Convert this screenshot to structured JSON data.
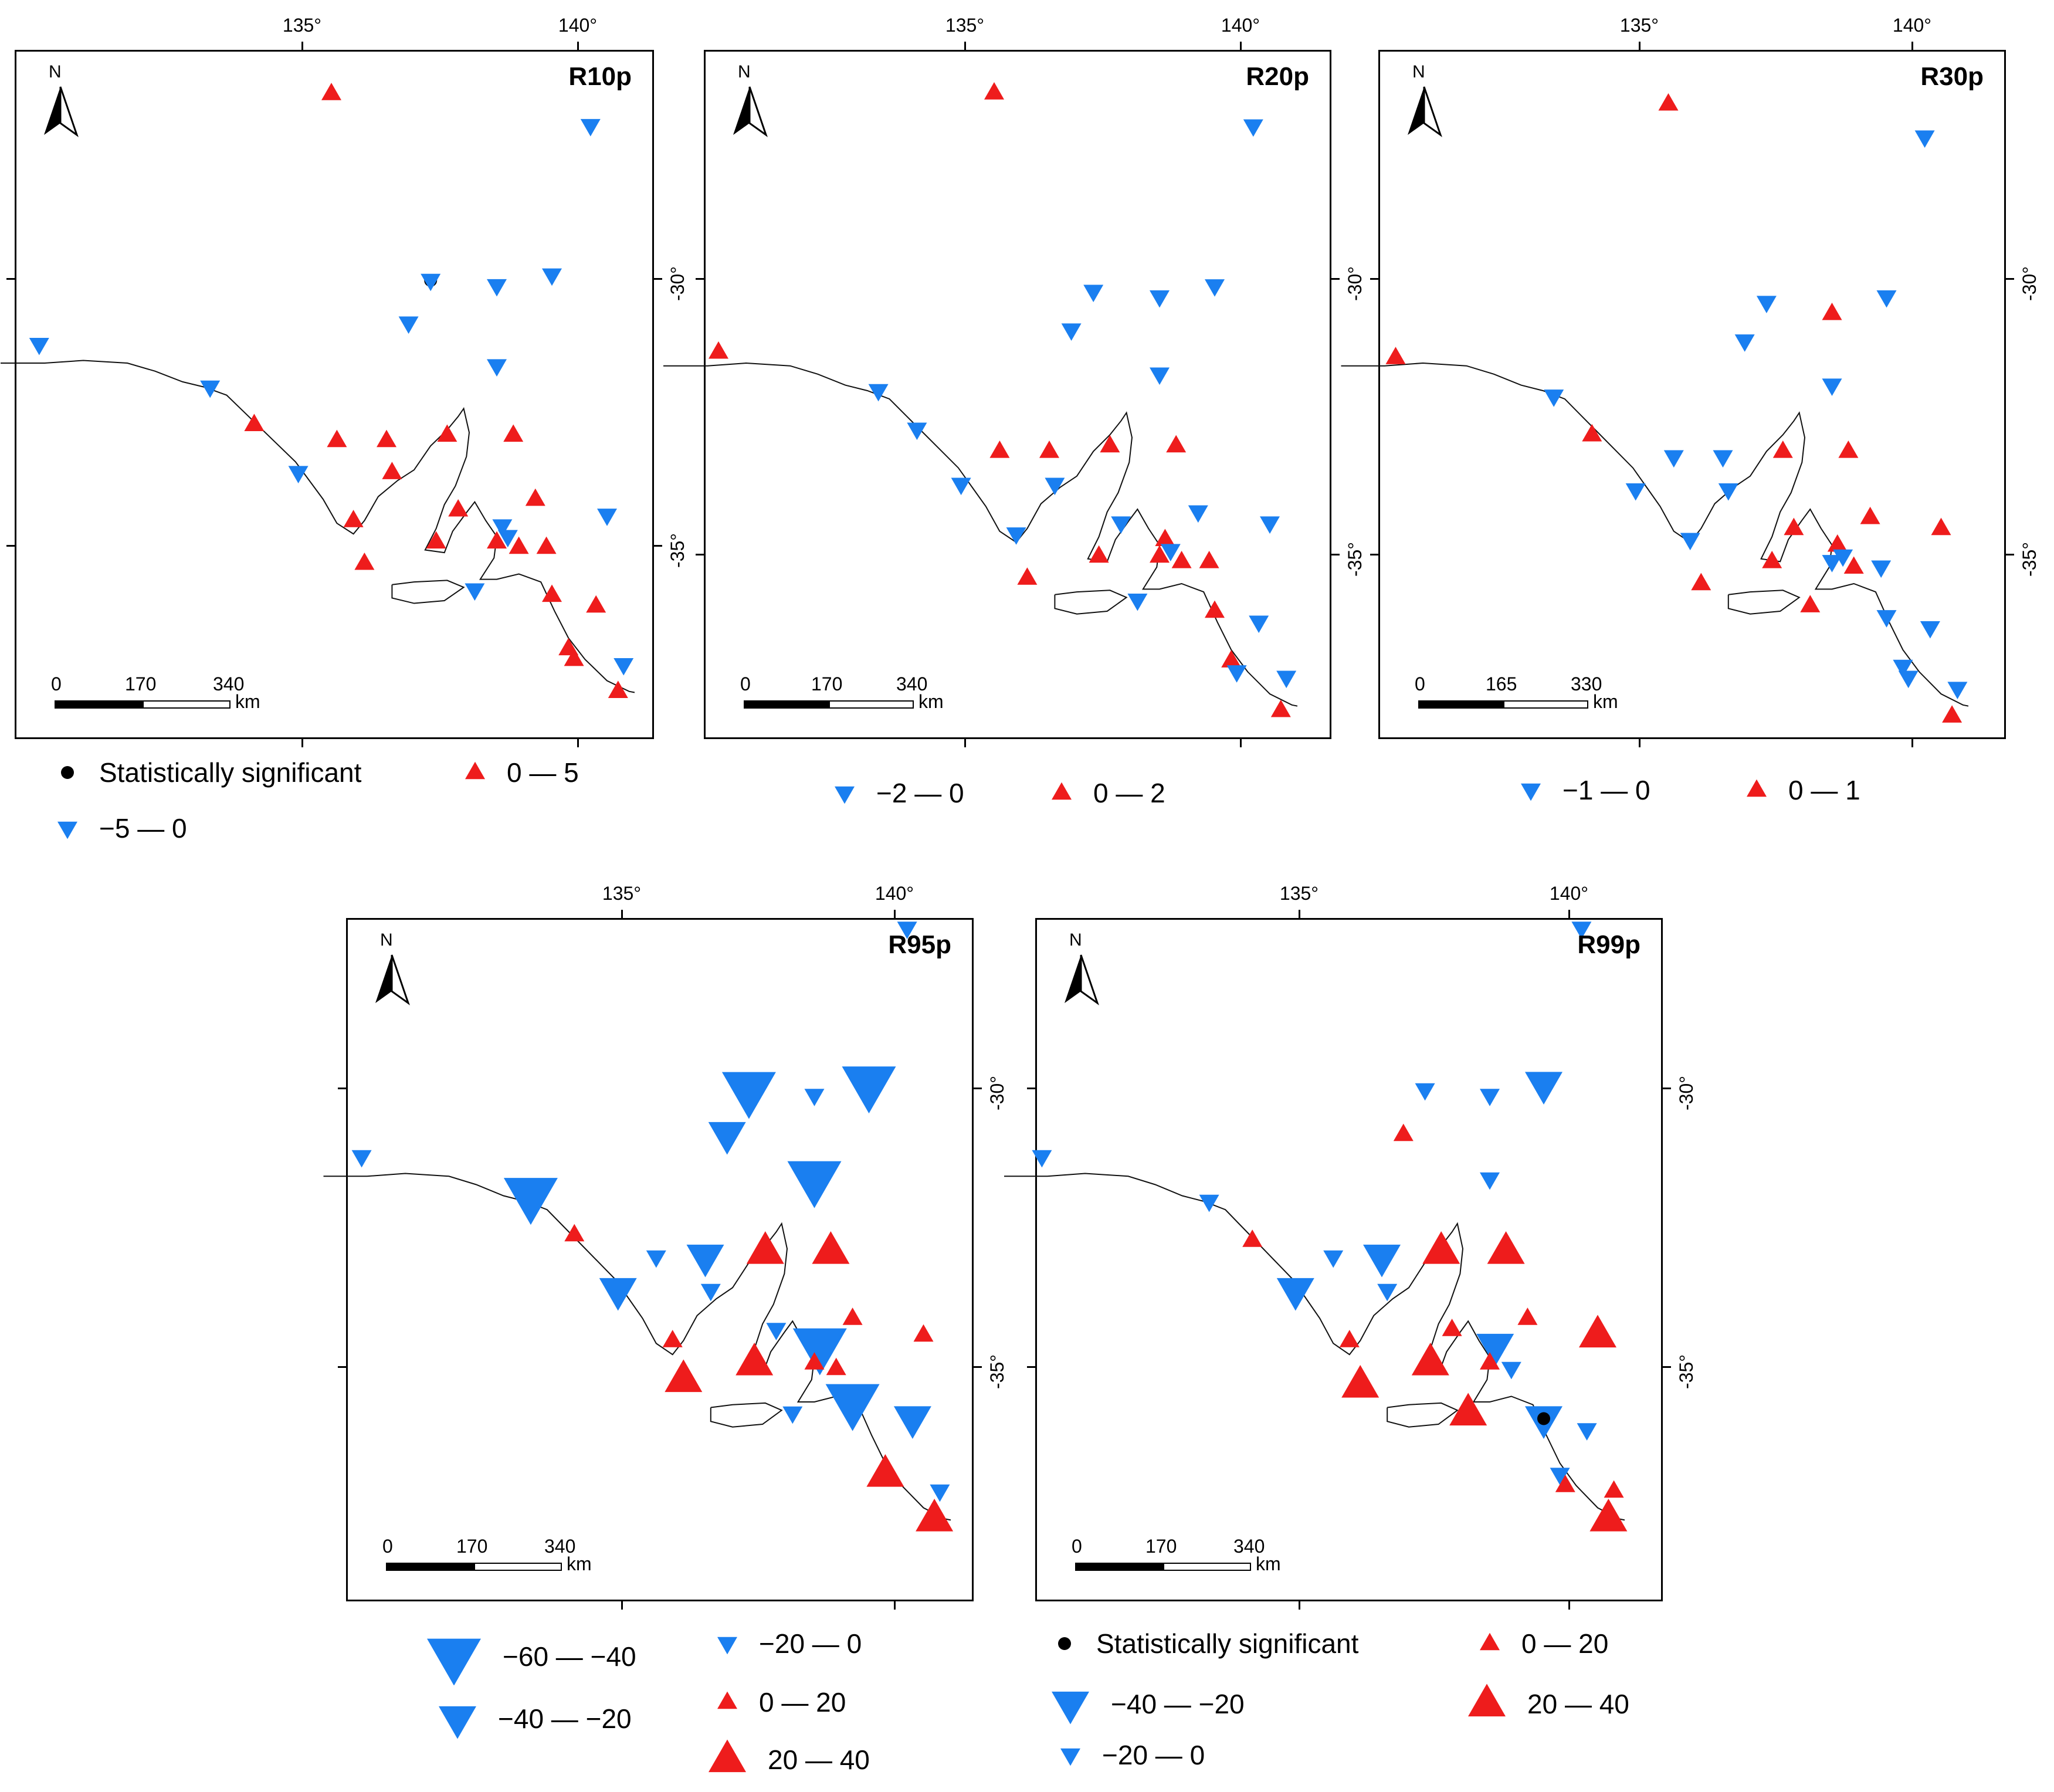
{
  "colors": {
    "positive": "#ee1c1c",
    "negative": "#1a7ff0",
    "significant": "#000000"
  },
  "common": {
    "north_label": "N",
    "lon_labels": [
      "135°",
      "140°"
    ],
    "lat_labels": [
      "-30°",
      "-35°"
    ],
    "km_label": "km"
  },
  "panels": [
    {
      "title": "R10p",
      "scale": [
        "0",
        "170",
        "340"
      ],
      "stations": [
        {
          "lon": 135.5,
          "lat": -26.5,
          "s": "pos1"
        },
        {
          "lon": 140.2,
          "lat": -27.1,
          "s": "neg1"
        },
        {
          "lon": 137.3,
          "lat": -30.0,
          "s": "sig"
        },
        {
          "lon": 137.3,
          "lat": -30.0,
          "s": "neg1"
        },
        {
          "lon": 138.5,
          "lat": -30.1,
          "s": "neg1"
        },
        {
          "lon": 139.5,
          "lat": -29.9,
          "s": "neg1"
        },
        {
          "lon": 136.9,
          "lat": -30.8,
          "s": "neg1"
        },
        {
          "lon": 130.2,
          "lat": -31.2,
          "s": "neg1"
        },
        {
          "lon": 133.3,
          "lat": -32.0,
          "s": "neg1"
        },
        {
          "lon": 138.5,
          "lat": -31.6,
          "s": "neg1"
        },
        {
          "lon": 134.1,
          "lat": -32.7,
          "s": "pos1"
        },
        {
          "lon": 135.6,
          "lat": -33.0,
          "s": "pos1"
        },
        {
          "lon": 136.5,
          "lat": -33.0,
          "s": "pos1"
        },
        {
          "lon": 137.6,
          "lat": -32.9,
          "s": "pos1"
        },
        {
          "lon": 138.8,
          "lat": -32.9,
          "s": "pos1"
        },
        {
          "lon": 134.9,
          "lat": -33.6,
          "s": "neg1"
        },
        {
          "lon": 136.6,
          "lat": -33.6,
          "s": "pos1"
        },
        {
          "lon": 139.2,
          "lat": -34.1,
          "s": "pos1"
        },
        {
          "lon": 137.8,
          "lat": -34.3,
          "s": "pos1"
        },
        {
          "lon": 135.9,
          "lat": -34.5,
          "s": "pos1"
        },
        {
          "lon": 138.6,
          "lat": -34.6,
          "s": "neg1"
        },
        {
          "lon": 140.5,
          "lat": -34.4,
          "s": "neg1"
        },
        {
          "lon": 137.4,
          "lat": -34.9,
          "s": "pos1"
        },
        {
          "lon": 138.5,
          "lat": -34.9,
          "s": "pos1"
        },
        {
          "lon": 138.7,
          "lat": -34.8,
          "s": "neg1"
        },
        {
          "lon": 138.9,
          "lat": -35.0,
          "s": "pos1"
        },
        {
          "lon": 139.4,
          "lat": -35.0,
          "s": "pos1"
        },
        {
          "lon": 136.1,
          "lat": -35.3,
          "s": "pos1"
        },
        {
          "lon": 138.1,
          "lat": -35.8,
          "s": "neg1"
        },
        {
          "lon": 139.5,
          "lat": -35.9,
          "s": "pos1"
        },
        {
          "lon": 140.3,
          "lat": -36.1,
          "s": "pos1"
        },
        {
          "lon": 139.8,
          "lat": -36.9,
          "s": "pos1"
        },
        {
          "lon": 139.9,
          "lat": -37.1,
          "s": "pos1"
        },
        {
          "lon": 140.8,
          "lat": -37.2,
          "s": "neg1"
        },
        {
          "lon": 140.7,
          "lat": -37.7,
          "s": "pos1"
        }
      ]
    },
    {
      "title": "R20p",
      "scale": [
        "0",
        "170",
        "340"
      ],
      "stations": [
        {
          "lon": 135.5,
          "lat": -26.6,
          "s": "pos1"
        },
        {
          "lon": 140.2,
          "lat": -27.2,
          "s": "neg1"
        },
        {
          "lon": 137.3,
          "lat": -30.2,
          "s": "neg1"
        },
        {
          "lon": 138.5,
          "lat": -30.3,
          "s": "neg1"
        },
        {
          "lon": 139.5,
          "lat": -30.1,
          "s": "neg1"
        },
        {
          "lon": 136.9,
          "lat": -30.9,
          "s": "neg1"
        },
        {
          "lon": 130.5,
          "lat": -31.3,
          "s": "pos1"
        },
        {
          "lon": 138.5,
          "lat": -31.7,
          "s": "neg1"
        },
        {
          "lon": 133.4,
          "lat": -32.0,
          "s": "neg1"
        },
        {
          "lon": 134.1,
          "lat": -32.7,
          "s": "neg1"
        },
        {
          "lon": 135.6,
          "lat": -33.1,
          "s": "pos1"
        },
        {
          "lon": 136.5,
          "lat": -33.1,
          "s": "pos1"
        },
        {
          "lon": 137.6,
          "lat": -33.0,
          "s": "pos1"
        },
        {
          "lon": 138.8,
          "lat": -33.0,
          "s": "pos1"
        },
        {
          "lon": 134.9,
          "lat": -33.7,
          "s": "neg1"
        },
        {
          "lon": 136.6,
          "lat": -33.7,
          "s": "neg1"
        },
        {
          "lon": 139.2,
          "lat": -34.2,
          "s": "neg1"
        },
        {
          "lon": 137.8,
          "lat": -34.4,
          "s": "neg1"
        },
        {
          "lon": 135.9,
          "lat": -34.6,
          "s": "neg1"
        },
        {
          "lon": 138.6,
          "lat": -34.7,
          "s": "pos1"
        },
        {
          "lon": 140.5,
          "lat": -34.4,
          "s": "neg1"
        },
        {
          "lon": 137.4,
          "lat": -35.0,
          "s": "pos1"
        },
        {
          "lon": 138.5,
          "lat": -35.0,
          "s": "pos1"
        },
        {
          "lon": 138.7,
          "lat": -34.9,
          "s": "neg1"
        },
        {
          "lon": 138.9,
          "lat": -35.1,
          "s": "pos1"
        },
        {
          "lon": 139.4,
          "lat": -35.1,
          "s": "pos1"
        },
        {
          "lon": 136.1,
          "lat": -35.4,
          "s": "pos1"
        },
        {
          "lon": 138.1,
          "lat": -35.8,
          "s": "neg1"
        },
        {
          "lon": 139.5,
          "lat": -36.0,
          "s": "pos1"
        },
        {
          "lon": 140.3,
          "lat": -36.2,
          "s": "neg1"
        },
        {
          "lon": 139.8,
          "lat": -36.9,
          "s": "pos1"
        },
        {
          "lon": 139.9,
          "lat": -37.1,
          "s": "neg1"
        },
        {
          "lon": 140.8,
          "lat": -37.2,
          "s": "neg1"
        },
        {
          "lon": 140.7,
          "lat": -37.8,
          "s": "pos1"
        }
      ]
    },
    {
      "title": "R30p",
      "scale": [
        "0",
        "165",
        "330"
      ],
      "stations": [
        {
          "lon": 135.5,
          "lat": -26.8,
          "s": "pos1"
        },
        {
          "lon": 140.2,
          "lat": -27.4,
          "s": "neg1"
        },
        {
          "lon": 137.3,
          "lat": -30.4,
          "s": "neg1"
        },
        {
          "lon": 138.5,
          "lat": -30.6,
          "s": "pos1"
        },
        {
          "lon": 139.5,
          "lat": -30.3,
          "s": "neg1"
        },
        {
          "lon": 136.9,
          "lat": -31.1,
          "s": "neg1"
        },
        {
          "lon": 130.5,
          "lat": -31.4,
          "s": "pos1"
        },
        {
          "lon": 138.5,
          "lat": -31.9,
          "s": "neg1"
        },
        {
          "lon": 133.4,
          "lat": -32.1,
          "s": "neg1"
        },
        {
          "lon": 134.1,
          "lat": -32.8,
          "s": "pos1"
        },
        {
          "lon": 135.6,
          "lat": -33.2,
          "s": "neg1"
        },
        {
          "lon": 136.5,
          "lat": -33.2,
          "s": "neg1"
        },
        {
          "lon": 137.6,
          "lat": -33.1,
          "s": "pos1"
        },
        {
          "lon": 138.8,
          "lat": -33.1,
          "s": "pos1"
        },
        {
          "lon": 134.9,
          "lat": -33.8,
          "s": "neg1"
        },
        {
          "lon": 136.6,
          "lat": -33.8,
          "s": "neg1"
        },
        {
          "lon": 139.2,
          "lat": -34.3,
          "s": "pos1"
        },
        {
          "lon": 137.8,
          "lat": -34.5,
          "s": "pos1"
        },
        {
          "lon": 135.9,
          "lat": -34.7,
          "s": "neg1"
        },
        {
          "lon": 138.6,
          "lat": -34.8,
          "s": "pos1"
        },
        {
          "lon": 140.5,
          "lat": -34.5,
          "s": "pos1"
        },
        {
          "lon": 137.4,
          "lat": -35.1,
          "s": "pos1"
        },
        {
          "lon": 138.5,
          "lat": -35.1,
          "s": "neg1"
        },
        {
          "lon": 138.7,
          "lat": -35.0,
          "s": "neg1"
        },
        {
          "lon": 138.9,
          "lat": -35.2,
          "s": "pos1"
        },
        {
          "lon": 139.4,
          "lat": -35.2,
          "s": "neg1"
        },
        {
          "lon": 136.1,
          "lat": -35.5,
          "s": "pos1"
        },
        {
          "lon": 138.1,
          "lat": -35.9,
          "s": "pos1"
        },
        {
          "lon": 139.5,
          "lat": -36.1,
          "s": "neg1"
        },
        {
          "lon": 140.3,
          "lat": -36.3,
          "s": "neg1"
        },
        {
          "lon": 139.8,
          "lat": -37.0,
          "s": "neg1"
        },
        {
          "lon": 139.9,
          "lat": -37.2,
          "s": "neg1"
        },
        {
          "lon": 140.8,
          "lat": -37.4,
          "s": "neg1"
        },
        {
          "lon": 140.7,
          "lat": -37.9,
          "s": "pos1"
        }
      ]
    },
    {
      "title": "R95p",
      "scale": [
        "0",
        "170",
        "340"
      ],
      "stations": [
        {
          "lon": 135.5,
          "lat": -26.5,
          "s": "pos1"
        },
        {
          "lon": 140.2,
          "lat": -27.1,
          "s": "neg1"
        },
        {
          "lon": 137.3,
          "lat": -30.0,
          "s": "neg3"
        },
        {
          "lon": 139.5,
          "lat": -29.9,
          "s": "neg3"
        },
        {
          "lon": 138.5,
          "lat": -30.1,
          "s": "neg1"
        },
        {
          "lon": 136.9,
          "lat": -30.8,
          "s": "neg2"
        },
        {
          "lon": 130.2,
          "lat": -31.2,
          "s": "neg1"
        },
        {
          "lon": 133.3,
          "lat": -31.9,
          "s": "neg3"
        },
        {
          "lon": 138.5,
          "lat": -31.6,
          "s": "neg3"
        },
        {
          "lon": 134.1,
          "lat": -32.6,
          "s": "pos1"
        },
        {
          "lon": 135.6,
          "lat": -33.0,
          "s": "neg1"
        },
        {
          "lon": 136.5,
          "lat": -33.0,
          "s": "neg2"
        },
        {
          "lon": 137.6,
          "lat": -32.9,
          "s": "pos2"
        },
        {
          "lon": 138.8,
          "lat": -32.9,
          "s": "pos2"
        },
        {
          "lon": 134.9,
          "lat": -33.6,
          "s": "neg2"
        },
        {
          "lon": 136.6,
          "lat": -33.6,
          "s": "neg1"
        },
        {
          "lon": 139.2,
          "lat": -34.1,
          "s": "pos1"
        },
        {
          "lon": 137.8,
          "lat": -34.3,
          "s": "neg1"
        },
        {
          "lon": 135.9,
          "lat": -34.5,
          "s": "pos1"
        },
        {
          "lon": 138.6,
          "lat": -34.6,
          "s": "neg3"
        },
        {
          "lon": 140.5,
          "lat": -34.4,
          "s": "pos1"
        },
        {
          "lon": 137.4,
          "lat": -34.9,
          "s": "pos2"
        },
        {
          "lon": 138.5,
          "lat": -34.9,
          "s": "pos1"
        },
        {
          "lon": 138.9,
          "lat": -35.0,
          "s": "pos1"
        },
        {
          "lon": 136.1,
          "lat": -35.2,
          "s": "pos2"
        },
        {
          "lon": 139.2,
          "lat": -35.6,
          "s": "neg3"
        },
        {
          "lon": 138.1,
          "lat": -35.8,
          "s": "neg1"
        },
        {
          "lon": 140.3,
          "lat": -35.9,
          "s": "neg2"
        },
        {
          "lon": 139.8,
          "lat": -36.9,
          "s": "pos2"
        },
        {
          "lon": 140.8,
          "lat": -37.2,
          "s": "neg1"
        },
        {
          "lon": 140.7,
          "lat": -37.7,
          "s": "pos2"
        }
      ]
    },
    {
      "title": "R99p",
      "scale": [
        "0",
        "170",
        "340"
      ],
      "stations": [
        {
          "lon": 135.5,
          "lat": -26.5,
          "s": "pos1"
        },
        {
          "lon": 140.2,
          "lat": -27.1,
          "s": "neg1"
        },
        {
          "lon": 137.3,
          "lat": -30.0,
          "s": "neg1"
        },
        {
          "lon": 138.5,
          "lat": -30.1,
          "s": "neg1"
        },
        {
          "lon": 139.5,
          "lat": -29.9,
          "s": "neg2"
        },
        {
          "lon": 136.9,
          "lat": -30.8,
          "s": "pos1"
        },
        {
          "lon": 130.2,
          "lat": -31.2,
          "s": "neg1"
        },
        {
          "lon": 138.5,
          "lat": -31.6,
          "s": "neg1"
        },
        {
          "lon": 133.3,
          "lat": -32.0,
          "s": "neg1"
        },
        {
          "lon": 134.1,
          "lat": -32.7,
          "s": "pos1"
        },
        {
          "lon": 135.6,
          "lat": -33.0,
          "s": "neg1"
        },
        {
          "lon": 136.5,
          "lat": -33.0,
          "s": "neg2"
        },
        {
          "lon": 137.6,
          "lat": -32.9,
          "s": "pos2"
        },
        {
          "lon": 138.8,
          "lat": -32.9,
          "s": "pos2"
        },
        {
          "lon": 134.9,
          "lat": -33.6,
          "s": "neg2"
        },
        {
          "lon": 136.6,
          "lat": -33.6,
          "s": "neg1"
        },
        {
          "lon": 139.2,
          "lat": -34.1,
          "s": "pos1"
        },
        {
          "lon": 137.8,
          "lat": -34.3,
          "s": "pos1"
        },
        {
          "lon": 135.9,
          "lat": -34.5,
          "s": "pos1"
        },
        {
          "lon": 138.6,
          "lat": -34.6,
          "s": "neg2"
        },
        {
          "lon": 140.5,
          "lat": -34.4,
          "s": "pos2"
        },
        {
          "lon": 137.4,
          "lat": -34.9,
          "s": "pos2"
        },
        {
          "lon": 138.5,
          "lat": -34.9,
          "s": "pos1"
        },
        {
          "lon": 138.9,
          "lat": -35.0,
          "s": "neg1"
        },
        {
          "lon": 136.1,
          "lat": -35.3,
          "s": "pos2"
        },
        {
          "lon": 138.1,
          "lat": -35.8,
          "s": "pos2"
        },
        {
          "lon": 139.5,
          "lat": -35.9,
          "s": "neg2"
        },
        {
          "lon": 139.5,
          "lat": -35.9,
          "s": "sig"
        },
        {
          "lon": 140.3,
          "lat": -36.1,
          "s": "neg1"
        },
        {
          "lon": 139.8,
          "lat": -36.9,
          "s": "neg1"
        },
        {
          "lon": 139.9,
          "lat": -37.1,
          "s": "pos1"
        },
        {
          "lon": 140.8,
          "lat": -37.2,
          "s": "pos1"
        },
        {
          "lon": 140.7,
          "lat": -37.7,
          "s": "pos2"
        }
      ]
    }
  ],
  "legends": [
    {
      "items": [
        {
          "label": "Statistically significant",
          "symbol": "sig"
        },
        {
          "label": "0 — 5",
          "symbol": "pos1"
        },
        {
          "label": "−5 — 0",
          "symbol": "neg1"
        }
      ]
    },
    {
      "items": [
        {
          "label": "−2 — 0",
          "symbol": "neg1"
        },
        {
          "label": "0 — 2",
          "symbol": "pos1"
        }
      ]
    },
    {
      "items": [
        {
          "label": "−1 — 0",
          "symbol": "neg1"
        },
        {
          "label": "0 — 1",
          "symbol": "pos1"
        }
      ]
    },
    {
      "items": [
        {
          "label": "−60 — −40",
          "symbol": "neg3"
        },
        {
          "label": "−40 — −20",
          "symbol": "neg2"
        },
        {
          "label": "−20 — 0",
          "symbol": "neg1"
        },
        {
          "label": "0 — 20",
          "symbol": "pos1"
        },
        {
          "label": "20 — 40",
          "symbol": "pos2"
        }
      ]
    },
    {
      "items": [
        {
          "label": "Statistically significant",
          "symbol": "sig"
        },
        {
          "label": "−40 — −20",
          "symbol": "neg2"
        },
        {
          "label": "−20 — 0",
          "symbol": "neg1"
        },
        {
          "label": "0 — 20",
          "symbol": "pos1"
        },
        {
          "label": "20 — 40",
          "symbol": "pos2"
        }
      ]
    }
  ]
}
